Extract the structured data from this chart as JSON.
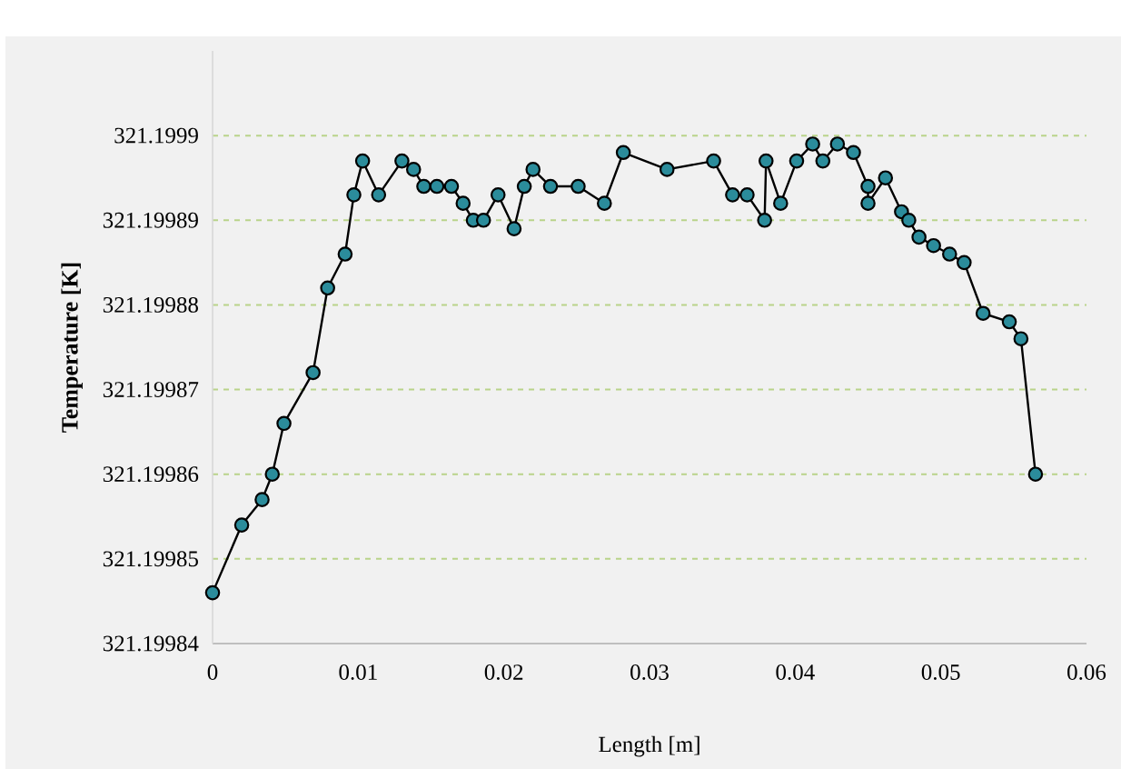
{
  "chart_data": {
    "type": "line",
    "xlabel": "Length [m]",
    "ylabel": "Temperature [K]",
    "x": [
      0,
      0.002,
      0.0034,
      0.0041,
      0.0049,
      0.0069,
      0.0079,
      0.0091,
      0.0097,
      0.0103,
      0.0114,
      0.013,
      0.0138,
      0.0145,
      0.0154,
      0.0164,
      0.0172,
      0.0179,
      0.0186,
      0.0196,
      0.0207,
      0.0214,
      0.022,
      0.0232,
      0.0251,
      0.0269,
      0.0282,
      0.0312,
      0.0344,
      0.0357,
      0.0367,
      0.0379,
      0.038,
      0.039,
      0.0401,
      0.0412,
      0.0419,
      0.0429,
      0.044,
      0.045,
      0.045,
      0.0462,
      0.0473,
      0.0478,
      0.0485,
      0.0495,
      0.0506,
      0.0516,
      0.0529,
      0.0547,
      0.0555,
      0.0565
    ],
    "values": [
      321.199846,
      321.199854,
      321.199857,
      321.19986,
      321.199866,
      321.199872,
      321.199882,
      321.199886,
      321.199893,
      321.199897,
      321.199893,
      321.199897,
      321.199896,
      321.199894,
      321.199894,
      321.199894,
      321.199892,
      321.19989,
      321.19989,
      321.199893,
      321.199889,
      321.199894,
      321.199896,
      321.199894,
      321.199894,
      321.199892,
      321.199898,
      321.199896,
      321.199897,
      321.199893,
      321.199893,
      321.19989,
      321.199897,
      321.199892,
      321.199897,
      321.199899,
      321.199897,
      321.199899,
      321.199898,
      321.199894,
      321.199892,
      321.199895,
      321.199891,
      321.19989,
      321.199888,
      321.199887,
      321.199886,
      321.199885,
      321.199879,
      321.199878,
      321.199876,
      321.19986
    ],
    "color": "#2b8c9b",
    "marker": "circle",
    "line_style": "solid",
    "xlim": [
      0,
      0.06
    ],
    "xticks": [
      0,
      0.01,
      0.02,
      0.03,
      0.04,
      0.05,
      0.06
    ],
    "ylim": [
      321.19984,
      321.19991
    ],
    "yticks": [
      321.19984,
      321.19985,
      321.19986,
      321.19987,
      321.19988,
      321.19989,
      321.1999
    ],
    "grid": "y"
  }
}
